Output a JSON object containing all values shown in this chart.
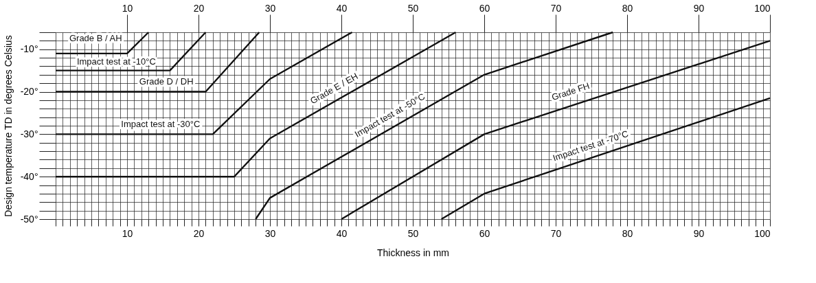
{
  "chart_data": {
    "type": "line",
    "xlabel": "Thickness in mm",
    "ylabel": "Design temperature TD in degrees Celsius",
    "xlim": [
      0,
      100
    ],
    "ylim": [
      -50,
      -6
    ],
    "xticks": [
      {
        "value": 0,
        "label": null
      },
      {
        "value": 1,
        "label": null
      },
      {
        "value": 2,
        "label": null
      },
      {
        "value": 3,
        "label": null
      },
      {
        "value": 4,
        "label": null
      },
      {
        "value": 5,
        "label": null
      },
      {
        "value": 6,
        "label": null
      },
      {
        "value": 7,
        "label": null
      },
      {
        "value": 8,
        "label": null
      },
      {
        "value": 9,
        "label": null
      },
      10,
      {
        "value": 11,
        "label": null
      },
      {
        "value": 12,
        "label": null
      },
      {
        "value": 13,
        "label": null
      },
      {
        "value": 14,
        "label": null
      },
      {
        "value": 15,
        "label": null
      },
      {
        "value": 16,
        "label": null
      },
      {
        "value": 17,
        "label": null
      },
      {
        "value": 18,
        "label": null
      },
      {
        "value": 19,
        "label": null
      },
      20,
      {
        "value": 21,
        "label": null
      },
      {
        "value": 22,
        "label": null
      },
      {
        "value": 23,
        "label": null
      },
      {
        "value": 24,
        "label": null
      },
      {
        "value": 25,
        "label": null
      },
      {
        "value": 26,
        "label": null
      },
      {
        "value": 27,
        "label": null
      },
      {
        "value": 28,
        "label": null
      },
      {
        "value": 29,
        "label": null
      },
      30,
      {
        "value": 31,
        "label": null
      },
      {
        "value": 32,
        "label": null
      },
      {
        "value": 33,
        "label": null
      },
      {
        "value": 34,
        "label": null
      },
      {
        "value": 35,
        "label": null
      },
      {
        "value": 36,
        "label": null
      },
      {
        "value": 37,
        "label": null
      },
      {
        "value": 38,
        "label": null
      },
      {
        "value": 39,
        "label": null
      },
      40,
      {
        "value": 41,
        "label": null
      },
      {
        "value": 42,
        "label": null
      },
      {
        "value": 43,
        "label": null
      },
      {
        "value": 44,
        "label": null
      },
      {
        "value": 45,
        "label": null
      },
      {
        "value": 46,
        "label": null
      },
      {
        "value": 47,
        "label": null
      },
      {
        "value": 48,
        "label": null
      },
      {
        "value": 49,
        "label": null
      },
      50,
      {
        "value": 51,
        "label": null
      },
      {
        "value": 52,
        "label": null
      },
      {
        "value": 53,
        "label": null
      },
      {
        "value": 54,
        "label": null
      },
      {
        "value": 55,
        "label": null
      },
      {
        "value": 56,
        "label": null
      },
      {
        "value": 57,
        "label": null
      },
      {
        "value": 58,
        "label": null
      },
      {
        "value": 59,
        "label": null
      },
      60,
      {
        "value": 61,
        "label": null
      },
      {
        "value": 62,
        "label": null
      },
      {
        "value": 63,
        "label": null
      },
      {
        "value": 64,
        "label": null
      },
      {
        "value": 65,
        "label": null
      },
      {
        "value": 66,
        "label": null
      },
      {
        "value": 67,
        "label": null
      },
      {
        "value": 68,
        "label": null
      },
      {
        "value": 69,
        "label": null
      },
      70,
      {
        "value": 71,
        "label": null
      },
      {
        "value": 72,
        "label": null
      },
      {
        "value": 73,
        "label": null
      },
      {
        "value": 74,
        "label": null
      },
      {
        "value": 75,
        "label": null
      },
      {
        "value": 76,
        "label": null
      },
      {
        "value": 77,
        "label": null
      },
      {
        "value": 78,
        "label": null
      },
      {
        "value": 79,
        "label": null
      },
      80,
      {
        "value": 81,
        "label": null
      },
      {
        "value": 82,
        "label": null
      },
      {
        "value": 83,
        "label": null
      },
      {
        "value": 84,
        "label": null
      },
      {
        "value": 85,
        "label": null
      },
      {
        "value": 86,
        "label": null
      },
      {
        "value": 87,
        "label": null
      },
      {
        "value": 88,
        "label": null
      },
      {
        "value": 89,
        "label": null
      },
      90,
      {
        "value": 91,
        "label": null
      },
      {
        "value": 92,
        "label": null
      },
      {
        "value": 93,
        "label": null
      },
      {
        "value": 94,
        "label": null
      },
      {
        "value": 95,
        "label": null
      },
      {
        "value": 96,
        "label": null
      },
      {
        "value": 97,
        "label": null
      },
      {
        "value": 98,
        "label": null
      },
      {
        "value": 99,
        "label": null
      },
      100
    ],
    "x2lim": [
      0,
      100
    ],
    "x2ticks": [
      10,
      20,
      30,
      40,
      50,
      60,
      70,
      80,
      90,
      100
    ],
    "yticks": [
      {
        "value": -50,
        "label": "-50°"
      },
      {
        "value": -48,
        "label": null
      },
      {
        "value": -46,
        "label": null
      },
      {
        "value": -44,
        "label": null
      },
      {
        "value": -42,
        "label": null
      },
      {
        "value": -40,
        "label": "-40°"
      },
      {
        "value": -38,
        "label": null
      },
      {
        "value": -36,
        "label": null
      },
      {
        "value": -34,
        "label": null
      },
      {
        "value": -32,
        "label": null
      },
      {
        "value": -30,
        "label": "-30°"
      },
      {
        "value": -28,
        "label": null
      },
      {
        "value": -26,
        "label": null
      },
      {
        "value": -24,
        "label": null
      },
      {
        "value": -22,
        "label": null
      },
      {
        "value": -20,
        "label": "-20°"
      },
      {
        "value": -18,
        "label": null
      },
      {
        "value": -16,
        "label": null
      },
      {
        "value": -14,
        "label": null
      },
      {
        "value": -12,
        "label": null
      },
      {
        "value": -10,
        "label": "-10°"
      },
      {
        "value": -8,
        "label": null
      },
      {
        "value": -6,
        "label": null
      }
    ],
    "grid": true,
    "legend": false,
    "marker": "none",
    "line_style": "solid",
    "series": [
      {
        "color": "#111111",
        "x": [
          0,
          10,
          13
        ],
        "values": [
          -11,
          -11,
          -6
        ]
      },
      {
        "color": "#111111",
        "x": [
          0,
          16,
          21
        ],
        "values": [
          -15,
          -15,
          -6
        ]
      },
      {
        "color": "#111111",
        "x": [
          0,
          21,
          28.5
        ],
        "values": [
          -20,
          -20,
          -6
        ]
      },
      {
        "color": "#111111",
        "x": [
          0,
          22,
          30,
          41.5
        ],
        "values": [
          -30,
          -30,
          -17,
          -6
        ]
      },
      {
        "color": "#111111",
        "x": [
          0,
          25,
          30,
          56
        ],
        "values": [
          -40,
          -40,
          -31,
          -6
        ]
      },
      {
        "color": "#111111",
        "x": [
          28,
          30,
          60,
          78
        ],
        "values": [
          -50,
          -45,
          -16,
          -6
        ]
      },
      {
        "color": "#111111",
        "x": [
          40,
          60,
          100
        ],
        "values": [
          -50,
          -30,
          -8
        ]
      },
      {
        "color": "#111111",
        "x": [
          54,
          60,
          100
        ],
        "values": [
          -50,
          -44,
          -21.5
        ]
      }
    ],
    "annotations": [
      "Grade B / AH",
      "Impact test at -10°C",
      "Grade D / DH",
      "Impact test at -30°C",
      "Grade E / EH",
      "Impact test at -50°C",
      "Grade FH",
      "Impact test at -70°C"
    ]
  }
}
